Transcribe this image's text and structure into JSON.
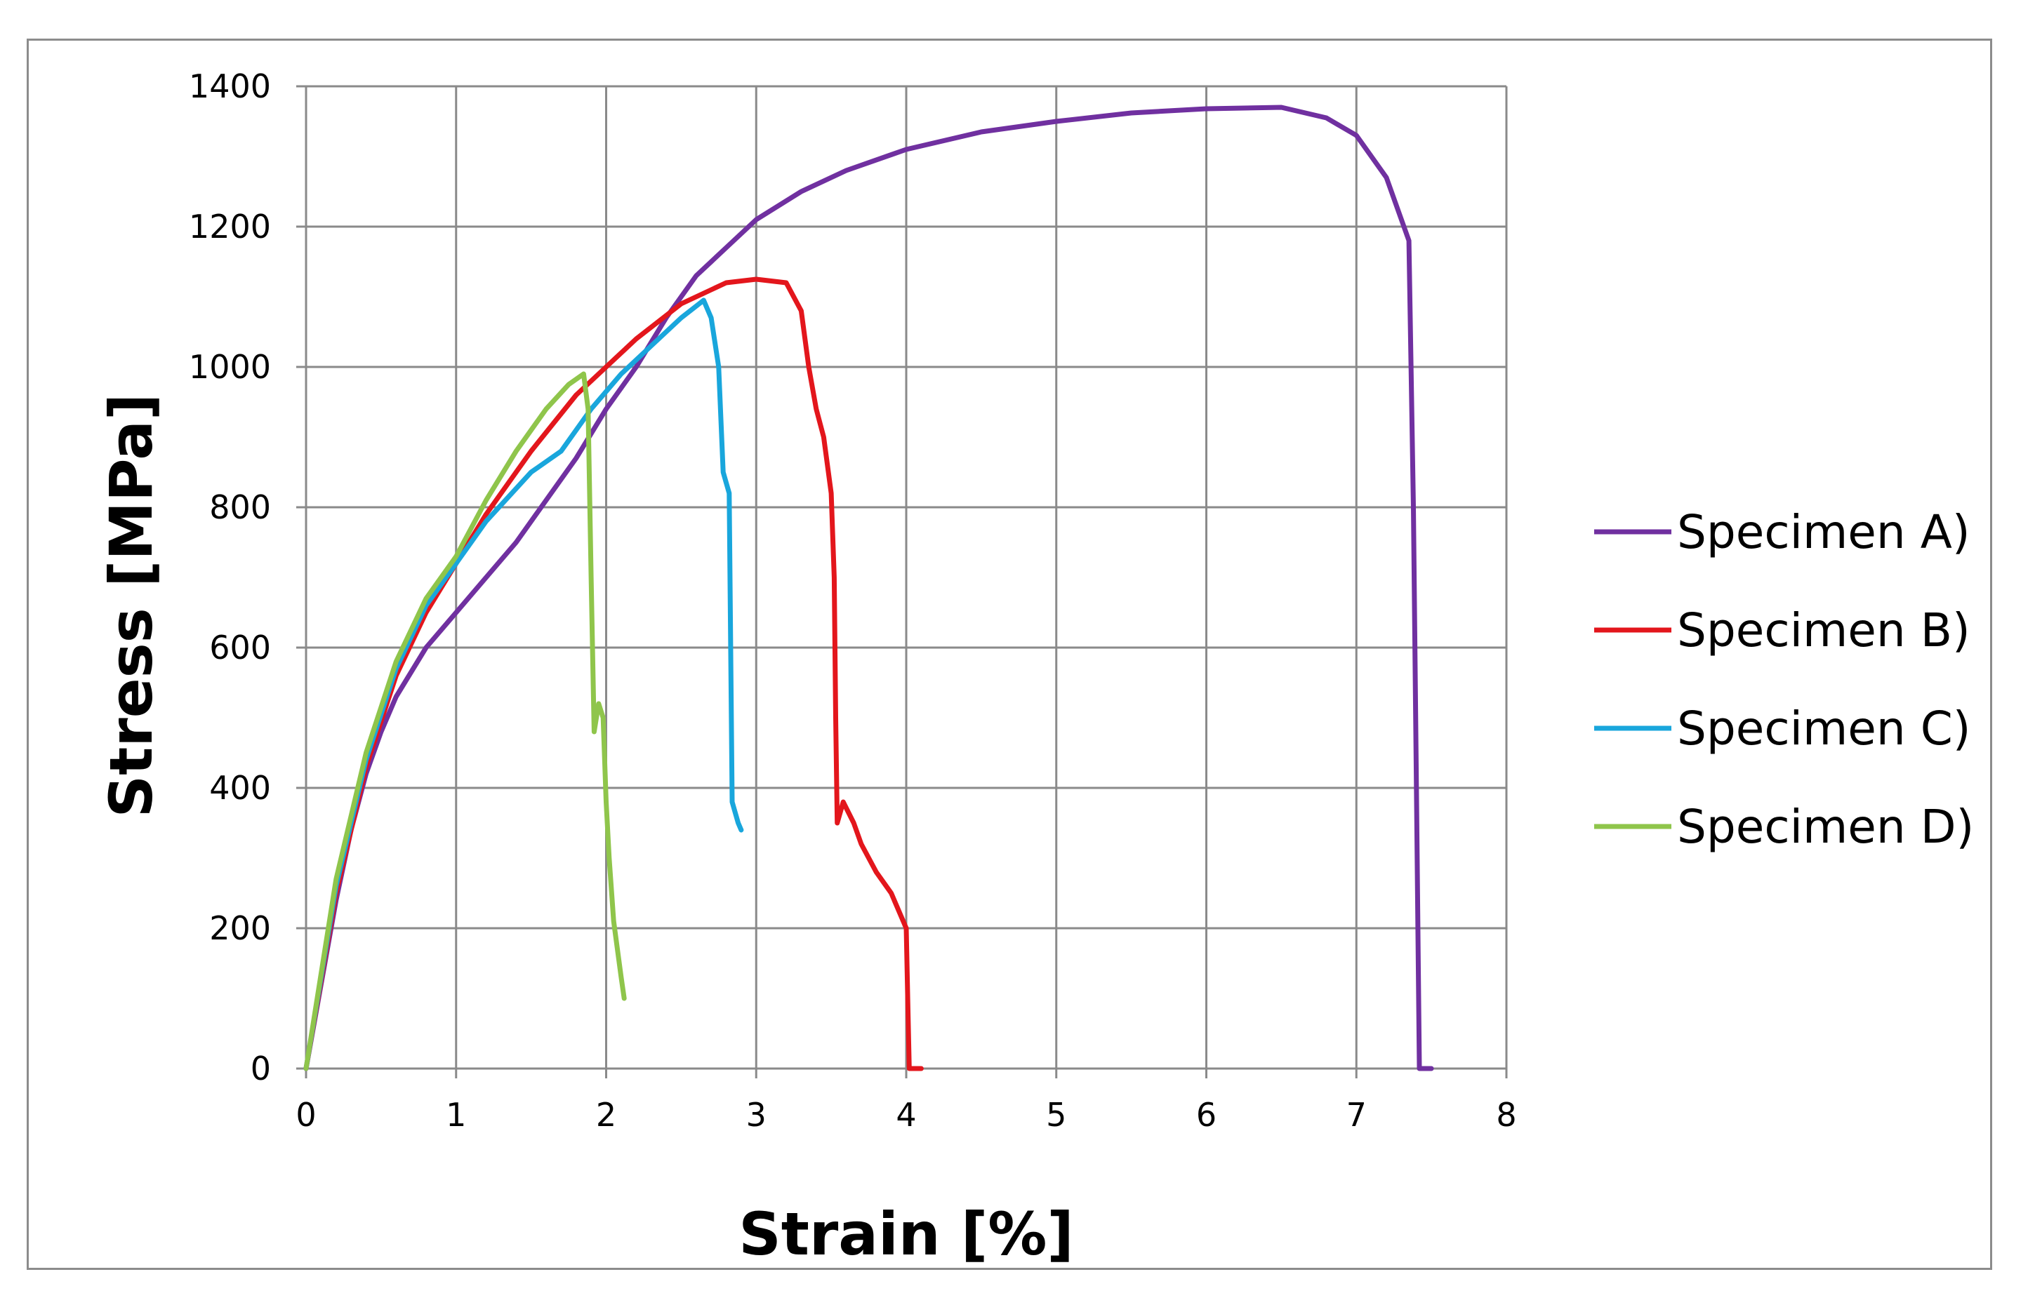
{
  "chart_data": {
    "type": "line",
    "title": "",
    "xlabel": "Strain [%]",
    "ylabel": "Stress [MPa]",
    "xlim": [
      0,
      8
    ],
    "ylim": [
      0,
      1400
    ],
    "xticks": [
      0,
      1,
      2,
      3,
      4,
      5,
      6,
      7,
      8
    ],
    "yticks": [
      0,
      200,
      400,
      600,
      800,
      1000,
      1200,
      1400
    ],
    "grid": true,
    "legend_position": "right",
    "series": [
      {
        "name": "Specimen A)",
        "color": "#7030a0",
        "points": [
          [
            0,
            0
          ],
          [
            0.1,
            120
          ],
          [
            0.2,
            240
          ],
          [
            0.3,
            340
          ],
          [
            0.4,
            420
          ],
          [
            0.5,
            480
          ],
          [
            0.6,
            530
          ],
          [
            0.8,
            600
          ],
          [
            1.0,
            650
          ],
          [
            1.2,
            700
          ],
          [
            1.4,
            750
          ],
          [
            1.6,
            810
          ],
          [
            1.8,
            870
          ],
          [
            2.0,
            940
          ],
          [
            2.2,
            1000
          ],
          [
            2.4,
            1070
          ],
          [
            2.6,
            1130
          ],
          [
            2.8,
            1170
          ],
          [
            3.0,
            1210
          ],
          [
            3.3,
            1250
          ],
          [
            3.6,
            1280
          ],
          [
            4.0,
            1310
          ],
          [
            4.5,
            1335
          ],
          [
            5.0,
            1350
          ],
          [
            5.5,
            1362
          ],
          [
            6.0,
            1368
          ],
          [
            6.5,
            1370
          ],
          [
            6.8,
            1355
          ],
          [
            7.0,
            1330
          ],
          [
            7.2,
            1270
          ],
          [
            7.35,
            1180
          ],
          [
            7.38,
            800
          ],
          [
            7.4,
            400
          ],
          [
            7.42,
            0
          ],
          [
            7.5,
            0
          ]
        ]
      },
      {
        "name": "Specimen B)",
        "color": "#e3161c",
        "points": [
          [
            0,
            0
          ],
          [
            0.2,
            250
          ],
          [
            0.4,
            430
          ],
          [
            0.6,
            560
          ],
          [
            0.8,
            650
          ],
          [
            1.0,
            720
          ],
          [
            1.2,
            790
          ],
          [
            1.5,
            880
          ],
          [
            1.8,
            960
          ],
          [
            2.0,
            1000
          ],
          [
            2.2,
            1040
          ],
          [
            2.5,
            1090
          ],
          [
            2.8,
            1120
          ],
          [
            3.0,
            1125
          ],
          [
            3.2,
            1120
          ],
          [
            3.3,
            1080
          ],
          [
            3.35,
            1000
          ],
          [
            3.4,
            940
          ],
          [
            3.45,
            900
          ],
          [
            3.5,
            820
          ],
          [
            3.52,
            700
          ],
          [
            3.53,
            500
          ],
          [
            3.54,
            350
          ],
          [
            3.58,
            380
          ],
          [
            3.65,
            350
          ],
          [
            3.7,
            320
          ],
          [
            3.8,
            280
          ],
          [
            3.9,
            250
          ],
          [
            4.0,
            200
          ],
          [
            4.01,
            100
          ],
          [
            4.02,
            0
          ],
          [
            4.1,
            0
          ]
        ]
      },
      {
        "name": "Specimen C)",
        "color": "#19a6dc",
        "points": [
          [
            0,
            0
          ],
          [
            0.2,
            260
          ],
          [
            0.4,
            440
          ],
          [
            0.6,
            570
          ],
          [
            0.8,
            660
          ],
          [
            1.0,
            720
          ],
          [
            1.2,
            780
          ],
          [
            1.5,
            850
          ],
          [
            1.7,
            880
          ],
          [
            1.9,
            940
          ],
          [
            2.1,
            990
          ],
          [
            2.3,
            1030
          ],
          [
            2.5,
            1070
          ],
          [
            2.65,
            1095
          ],
          [
            2.7,
            1070
          ],
          [
            2.75,
            1000
          ],
          [
            2.78,
            850
          ],
          [
            2.82,
            820
          ],
          [
            2.83,
            600
          ],
          [
            2.84,
            380
          ],
          [
            2.88,
            350
          ],
          [
            2.9,
            340
          ]
        ]
      },
      {
        "name": "Specimen D)",
        "color": "#8fc54b",
        "points": [
          [
            0,
            0
          ],
          [
            0.2,
            270
          ],
          [
            0.4,
            450
          ],
          [
            0.6,
            580
          ],
          [
            0.8,
            670
          ],
          [
            1.0,
            730
          ],
          [
            1.2,
            810
          ],
          [
            1.4,
            880
          ],
          [
            1.6,
            940
          ],
          [
            1.75,
            975
          ],
          [
            1.85,
            990
          ],
          [
            1.88,
            940
          ],
          [
            1.9,
            700
          ],
          [
            1.92,
            480
          ],
          [
            1.95,
            520
          ],
          [
            1.98,
            500
          ],
          [
            2.0,
            380
          ],
          [
            2.02,
            300
          ],
          [
            2.05,
            210
          ],
          [
            2.1,
            130
          ],
          [
            2.12,
            100
          ]
        ]
      }
    ]
  }
}
